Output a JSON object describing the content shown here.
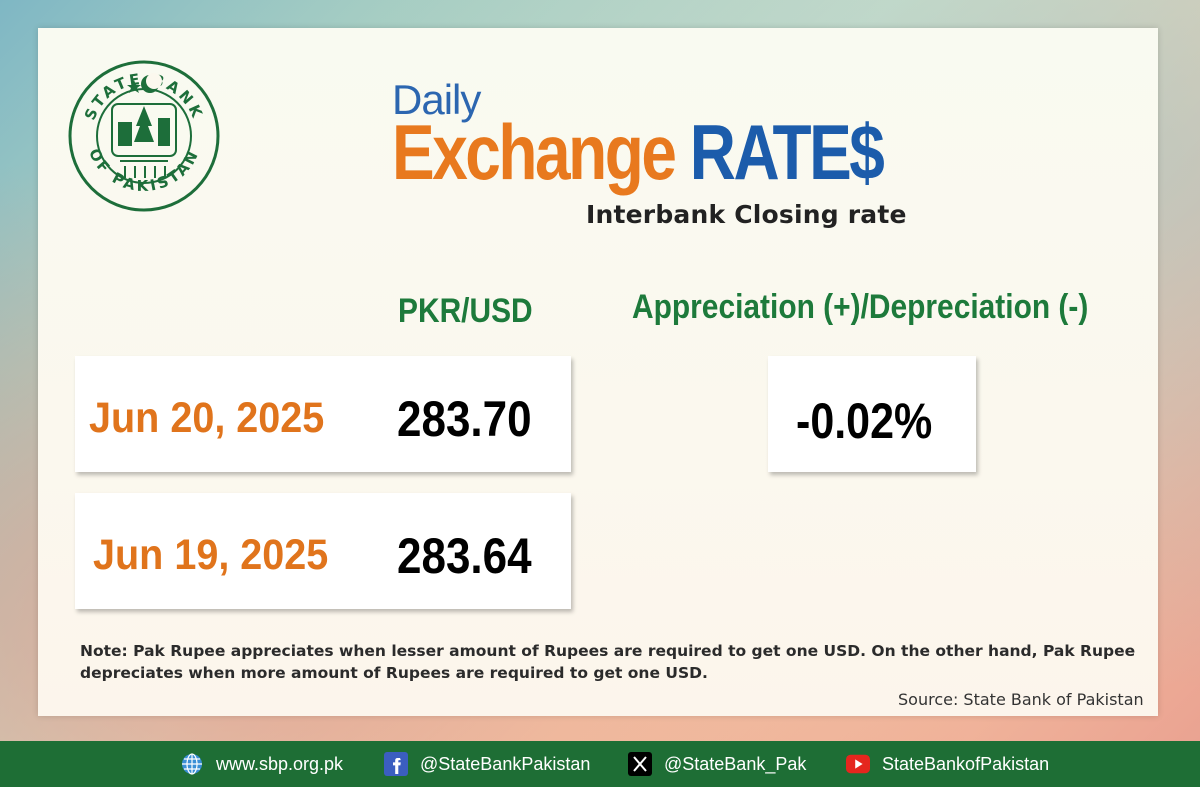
{
  "title": {
    "daily": "Daily",
    "exchange": "Exchange",
    "rates": "RATE$",
    "subtitle": "Interbank Closing rate"
  },
  "columns": {
    "pair": "PKR/USD",
    "change": "Appreciation (+)/Depreciation (-)"
  },
  "rates": [
    {
      "date": "Jun 20, 2025",
      "value": "283.70"
    },
    {
      "date": "Jun 19, 2025",
      "value": "283.64"
    }
  ],
  "change": "-0.02%",
  "note": "Note: Pak Rupee appreciates when lesser amount of Rupees are required to get one USD.  On the other hand, Pak Rupee depreciates when more amount of Rupees are required to get one USD.",
  "source": "Source: State Bank of Pakistan",
  "logo": {
    "text_top": "STATE BANK",
    "text_bottom": "OF PAKISTAN"
  },
  "footer": {
    "website": "www.sbp.org.pk",
    "facebook": "@StateBankPakistan",
    "x": "@StateBank_Pak",
    "youtube": "StateBankofPakistan"
  },
  "colors": {
    "orange": "#e8791e",
    "blue": "#1c5cab",
    "green": "#1d7a3b",
    "footer": "#1e6e35"
  }
}
